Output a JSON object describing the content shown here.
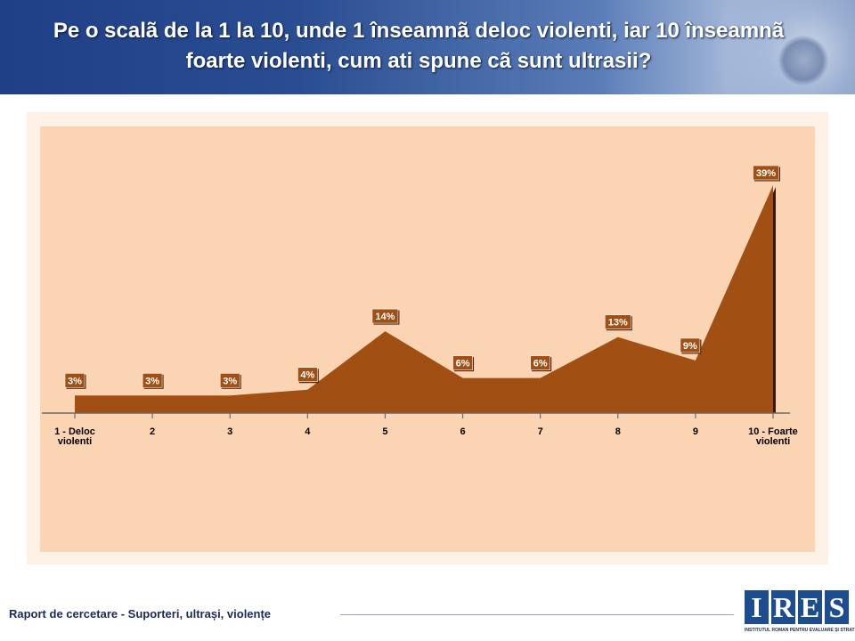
{
  "header": {
    "title_line1": "Pe o scalã de la 1 la 10, unde 1 înseamnã deloc violenti, iar 10 înseamnã",
    "title_line2": "foarte violenti, cum ati spune cã sunt ultrasii?"
  },
  "footer": {
    "report_label": "Raport de cercetare - Suporteri, ultrași, violențe"
  },
  "logo": {
    "letters": [
      "I",
      "R",
      "E",
      "S"
    ],
    "subtitle": "INSTITUTUL ROMÂN PENTRU EVALUARE ȘI STRATEGIE"
  },
  "colors": {
    "area_fill": "#a24f13",
    "area_edge": "#3a1806",
    "plot_bg": "#fbd4b4",
    "label_bg": "#a24f13",
    "header_bg": "#2a4d92"
  },
  "chart_data": {
    "type": "area",
    "categories": [
      "1 - Deloc violenti",
      "2",
      "3",
      "4",
      "5",
      "6",
      "7",
      "8",
      "9",
      "10 - Foarte violenti"
    ],
    "category_lines": [
      [
        "1 - Deloc",
        "violenti"
      ],
      [
        "2"
      ],
      [
        "3"
      ],
      [
        "4"
      ],
      [
        "5"
      ],
      [
        "6"
      ],
      [
        "7"
      ],
      [
        "8"
      ],
      [
        "9"
      ],
      [
        "10 - Foarte",
        "violenti"
      ]
    ],
    "values": [
      3,
      3,
      3,
      4,
      14,
      6,
      6,
      13,
      9,
      39
    ],
    "data_labels": [
      "3%",
      "3%",
      "3%",
      "4%",
      "14%",
      "6%",
      "6%",
      "13%",
      "9%",
      "39%"
    ],
    "unit": "%",
    "ylim": [
      0,
      42
    ],
    "grid": false,
    "legend": "none",
    "title": "",
    "xlabel": "",
    "ylabel": ""
  }
}
